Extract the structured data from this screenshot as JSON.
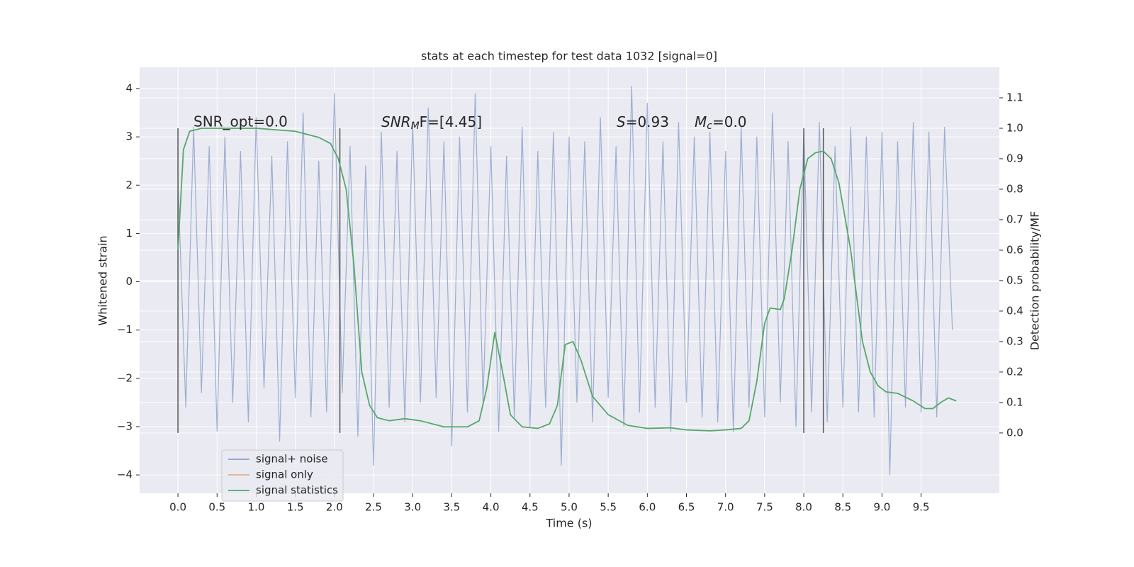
{
  "chart_data": {
    "type": "line",
    "title": "stats at each timestep for test data 1032 [signal=0]",
    "xlabel": "Time (s)",
    "ylabel": "Whitened strain",
    "y2label": "Detection probability/MF",
    "xlim": [
      -0.49,
      10.5
    ],
    "ylim": [
      -4.38,
      4.44
    ],
    "y2lim": [
      -0.198,
      1.2
    ],
    "xticks": [
      {
        "value": 0,
        "label": "0.0"
      },
      0.5,
      {
        "value": 1,
        "label": "1.0"
      },
      1.5,
      {
        "value": 2,
        "label": "2.0"
      },
      2.5,
      {
        "value": 3,
        "label": "3.0"
      },
      3.5,
      {
        "value": 4,
        "label": "4.0"
      },
      4.5,
      {
        "value": 5,
        "label": "5.0"
      },
      5.5,
      {
        "value": 6,
        "label": "6.0"
      },
      6.5,
      {
        "value": 7,
        "label": "7.0"
      },
      7.5,
      {
        "value": 8,
        "label": "8.0"
      },
      8.5,
      {
        "value": 9,
        "label": "9.0"
      },
      9.5
    ],
    "yticks": [
      {
        "value": -4,
        "label": "−4"
      },
      {
        "value": -3,
        "label": "−3"
      },
      {
        "value": -2,
        "label": "−2"
      },
      {
        "value": -1,
        "label": "−1"
      },
      0,
      1,
      2,
      3,
      4
    ],
    "y2ticks": [
      {
        "value": 0,
        "label": "0.0"
      },
      0.1,
      0.2,
      0.3,
      0.4,
      0.5,
      0.6,
      0.7,
      0.8,
      0.9,
      {
        "value": 1,
        "label": "1.0"
      },
      1.1
    ],
    "grid": true,
    "vlines": [
      0,
      2.07,
      8.0,
      8.25
    ],
    "vline_color": "#555555",
    "annotations": [
      {
        "text": "SNR_opt=0.0"
      },
      {
        "base": "SNR",
        "sub": "M",
        "tail": "F=[4.45]"
      },
      {
        "base": "S",
        "tail": "=0.93"
      },
      {
        "base": "M",
        "sub": "c",
        "tail": "=0.0"
      }
    ],
    "legend": "lower left",
    "series": [
      {
        "name": "signal+ noise",
        "color": "#4c72b0",
        "x": [
          0.0,
          0.1,
          0.2,
          0.3,
          0.4,
          0.5,
          0.6,
          0.7,
          0.8,
          0.9,
          1.0,
          1.1,
          1.2,
          1.3,
          1.4,
          1.5,
          1.6,
          1.7,
          1.8,
          1.9,
          2.0,
          2.1,
          2.2,
          2.3,
          2.4,
          2.5,
          2.6,
          2.7,
          2.8,
          2.9,
          3.0,
          3.1,
          3.2,
          3.3,
          3.4,
          3.5,
          3.6,
          3.7,
          3.8,
          3.9,
          4.0,
          4.1,
          4.2,
          4.3,
          4.4,
          4.5,
          4.6,
          4.7,
          4.8,
          4.9,
          5.0,
          5.1,
          5.2,
          5.3,
          5.4,
          5.5,
          5.6,
          5.7,
          5.8,
          5.9,
          6.0,
          6.1,
          6.2,
          6.3,
          6.4,
          6.5,
          6.6,
          6.7,
          6.8,
          6.9,
          7.0,
          7.1,
          7.2,
          7.3,
          7.4,
          7.5,
          7.6,
          7.7,
          7.8,
          7.9,
          8.0,
          8.1,
          8.2,
          8.3,
          8.4,
          8.5,
          8.6,
          8.7,
          8.8,
          8.9,
          9.0,
          9.1,
          9.2,
          9.3,
          9.4,
          9.5,
          9.6,
          9.7,
          9.8,
          9.9
        ],
        "values": [
          2.1,
          -2.6,
          3.2,
          -2.3,
          2.8,
          -3.1,
          3.0,
          -2.5,
          2.7,
          -2.9,
          3.4,
          -2.2,
          2.6,
          -3.3,
          2.9,
          -2.4,
          3.5,
          -2.8,
          2.5,
          -2.7,
          3.9,
          -2.3,
          2.8,
          -3.2,
          2.4,
          -3.8,
          3.1,
          -2.6,
          2.7,
          -2.9,
          3.3,
          -2.5,
          3.6,
          -2.4,
          2.9,
          -3.4,
          3.0,
          -2.7,
          3.9,
          -2.5,
          2.8,
          -3.1,
          2.6,
          -2.8,
          3.2,
          -3.0,
          2.7,
          -2.6,
          3.1,
          -3.8,
          3.0,
          -2.5,
          2.9,
          -2.9,
          3.4,
          -2.4,
          2.8,
          -3.0,
          4.05,
          -2.7,
          3.7,
          -2.6,
          2.9,
          -3.1,
          3.3,
          -2.5,
          3.0,
          -2.8,
          3.1,
          -2.9,
          2.7,
          -3.1,
          3.2,
          -2.6,
          3.0,
          -2.8,
          3.5,
          -2.5,
          2.9,
          -3.0,
          3.1,
          -2.7,
          3.3,
          -2.9,
          2.8,
          -2.6,
          3.2,
          -2.7,
          3.0,
          -2.8,
          3.1,
          -4.0,
          2.9,
          -2.6,
          3.3,
          -2.7,
          3.1,
          -2.8,
          3.2,
          -1.0
        ]
      },
      {
        "name": "signal only",
        "color": "#dd8452"
      },
      {
        "name": "signal statistics",
        "color": "#55a868",
        "axis": "y2",
        "x": [
          0,
          0.07,
          0.15,
          0.3,
          1.0,
          1.5,
          1.8,
          1.95,
          2.05,
          2.15,
          2.25,
          2.35,
          2.45,
          2.55,
          2.7,
          2.9,
          3.1,
          3.4,
          3.7,
          3.85,
          3.95,
          4.05,
          4.15,
          4.25,
          4.4,
          4.6,
          4.75,
          4.85,
          4.95,
          5.05,
          5.15,
          5.3,
          5.5,
          5.75,
          6.0,
          6.3,
          6.5,
          6.8,
          7.0,
          7.2,
          7.3,
          7.4,
          7.5,
          7.57,
          7.7,
          7.75,
          7.85,
          7.95,
          8.05,
          8.15,
          8.25,
          8.35,
          8.45,
          8.6,
          8.75,
          8.85,
          8.95,
          9.05,
          9.2,
          9.4,
          9.55,
          9.65,
          9.75,
          9.85,
          9.95
        ],
        "values": [
          0.6,
          0.93,
          0.99,
          1.0,
          1.0,
          0.99,
          0.97,
          0.95,
          0.9,
          0.8,
          0.55,
          0.2,
          0.09,
          0.05,
          0.04,
          0.047,
          0.04,
          0.02,
          0.02,
          0.04,
          0.15,
          0.33,
          0.2,
          0.06,
          0.02,
          0.015,
          0.03,
          0.09,
          0.29,
          0.3,
          0.24,
          0.12,
          0.06,
          0.025,
          0.015,
          0.017,
          0.01,
          0.007,
          0.01,
          0.015,
          0.04,
          0.17,
          0.36,
          0.41,
          0.405,
          0.44,
          0.6,
          0.8,
          0.9,
          0.92,
          0.925,
          0.9,
          0.82,
          0.6,
          0.3,
          0.2,
          0.155,
          0.135,
          0.13,
          0.105,
          0.08,
          0.08,
          0.1,
          0.115,
          0.105
        ]
      }
    ]
  }
}
